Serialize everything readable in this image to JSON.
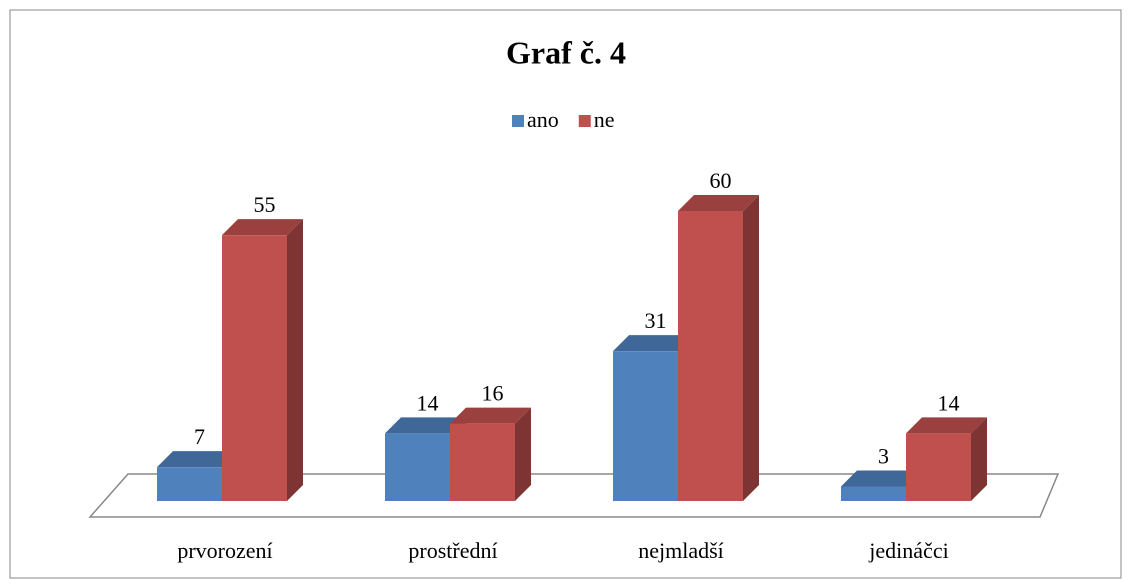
{
  "chart_data": {
    "type": "bar3d",
    "title": "Graf č. 4",
    "categories": [
      "prvorození",
      "prostřední",
      "nejmladší",
      "jedináčci"
    ],
    "series": [
      {
        "name": "ano",
        "color": "#4f81bd",
        "values": [
          7,
          14,
          31,
          3
        ]
      },
      {
        "name": "ne",
        "color": "#c0504d",
        "values": [
          55,
          16,
          60,
          14
        ]
      }
    ],
    "legend": "top"
  }
}
